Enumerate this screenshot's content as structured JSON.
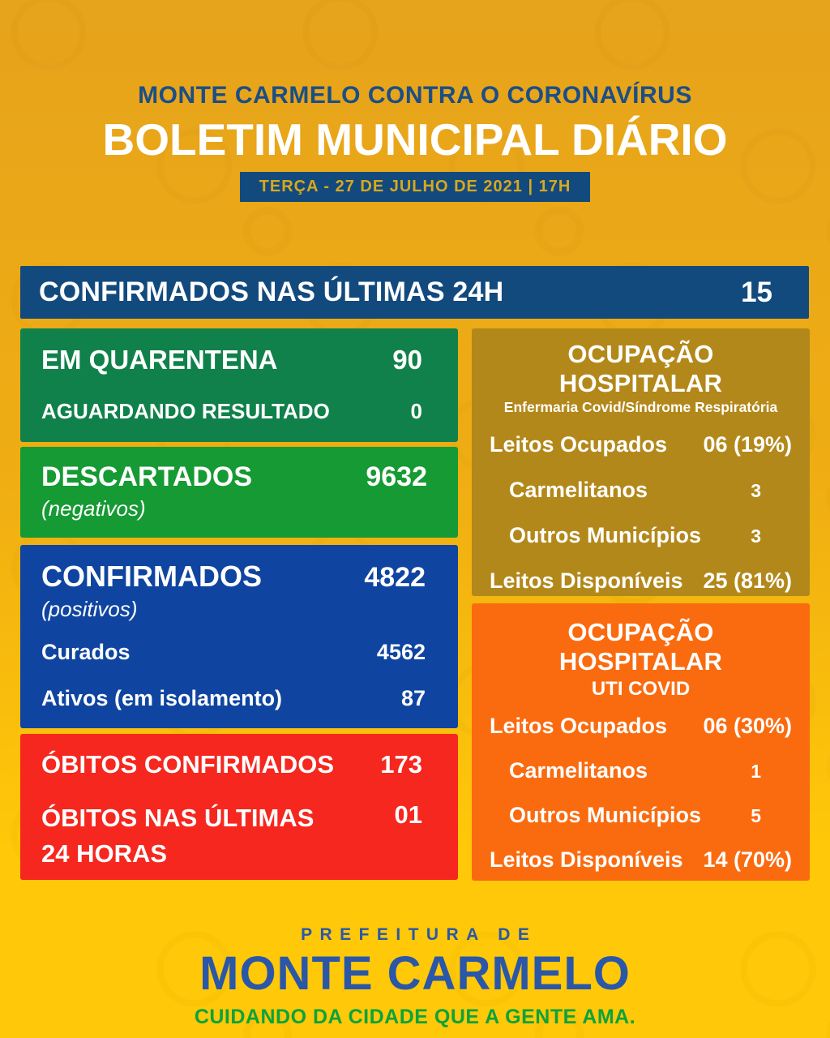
{
  "colors": {
    "bg_top": "#e6a31c",
    "bg_mid": "#efad13",
    "bg_bottom": "#ffc808",
    "navy": "#124a7e",
    "royal": "#0f45a0",
    "dark_green": "#10814a",
    "green": "#169a33",
    "red": "#f5271f",
    "olive": "#b3881a",
    "orange": "#fa6b0f",
    "header_blue": "#1b4e86",
    "badge_text": "#d8a81e",
    "footer_blue": "#2a57a8",
    "footer_green": "#0ca33c"
  },
  "header": {
    "tagline": "MONTE CARMELO CONTRA O CORONAVÍRUS",
    "title": "BOLETIM MUNICIPAL DIÁRIO",
    "date_badge": "TERÇA - 27 DE JULHO DE 2021  |  17H"
  },
  "summary_bar": {
    "label": "CONFIRMADOS NAS ÚLTIMAS 24H",
    "value": "15"
  },
  "quarantine_box": {
    "rows": [
      {
        "label": "EM QUARENTENA",
        "value": "90"
      },
      {
        "label": "AGUARDANDO RESULTADO",
        "value": "0"
      }
    ]
  },
  "discarded_box": {
    "title": "DESCARTADOS",
    "subtitle": "(negativos)",
    "value": "9632"
  },
  "confirmed_box": {
    "title": "CONFIRMADOS",
    "subtitle": "(positivos)",
    "value": "4822",
    "rows": [
      {
        "label": "Curados",
        "value": "4562"
      },
      {
        "label": "Ativos (em isolamento)",
        "value": "87"
      }
    ]
  },
  "deaths_box": {
    "rows": [
      {
        "label": "ÓBITOS CONFIRMADOS",
        "value": "173"
      },
      {
        "label": "ÓBITOS NAS ÚLTIMAS 24 HORAS",
        "value": "01"
      }
    ]
  },
  "ward_box": {
    "title": "OCUPAÇÃO HOSPITALAR",
    "subtitle": "Enfermaria Covid/Síndrome Respiratória",
    "rows": [
      {
        "label": "Leitos Ocupados",
        "value": "06 (19%)"
      },
      {
        "label": "Carmelitanos",
        "value": "3"
      },
      {
        "label": "Outros Municípios",
        "value": "3"
      },
      {
        "label": "Leitos Disponíveis",
        "value": "25 (81%)"
      }
    ]
  },
  "icu_box": {
    "title": "OCUPAÇÃO HOSPITALAR",
    "subtitle": "UTI COVID",
    "rows": [
      {
        "label": "Leitos Ocupados",
        "value": "06 (30%)"
      },
      {
        "label": "Carmelitanos",
        "value": "1"
      },
      {
        "label": "Outros Municípios",
        "value": "5"
      },
      {
        "label": "Leitos Disponíveis",
        "value": "14 (70%)"
      }
    ]
  },
  "footer": {
    "pre_title": "PREFEITURA DE",
    "city": "MONTE CARMELO",
    "slogan": "CUIDANDO DA CIDADE QUE A GENTE AMA."
  }
}
